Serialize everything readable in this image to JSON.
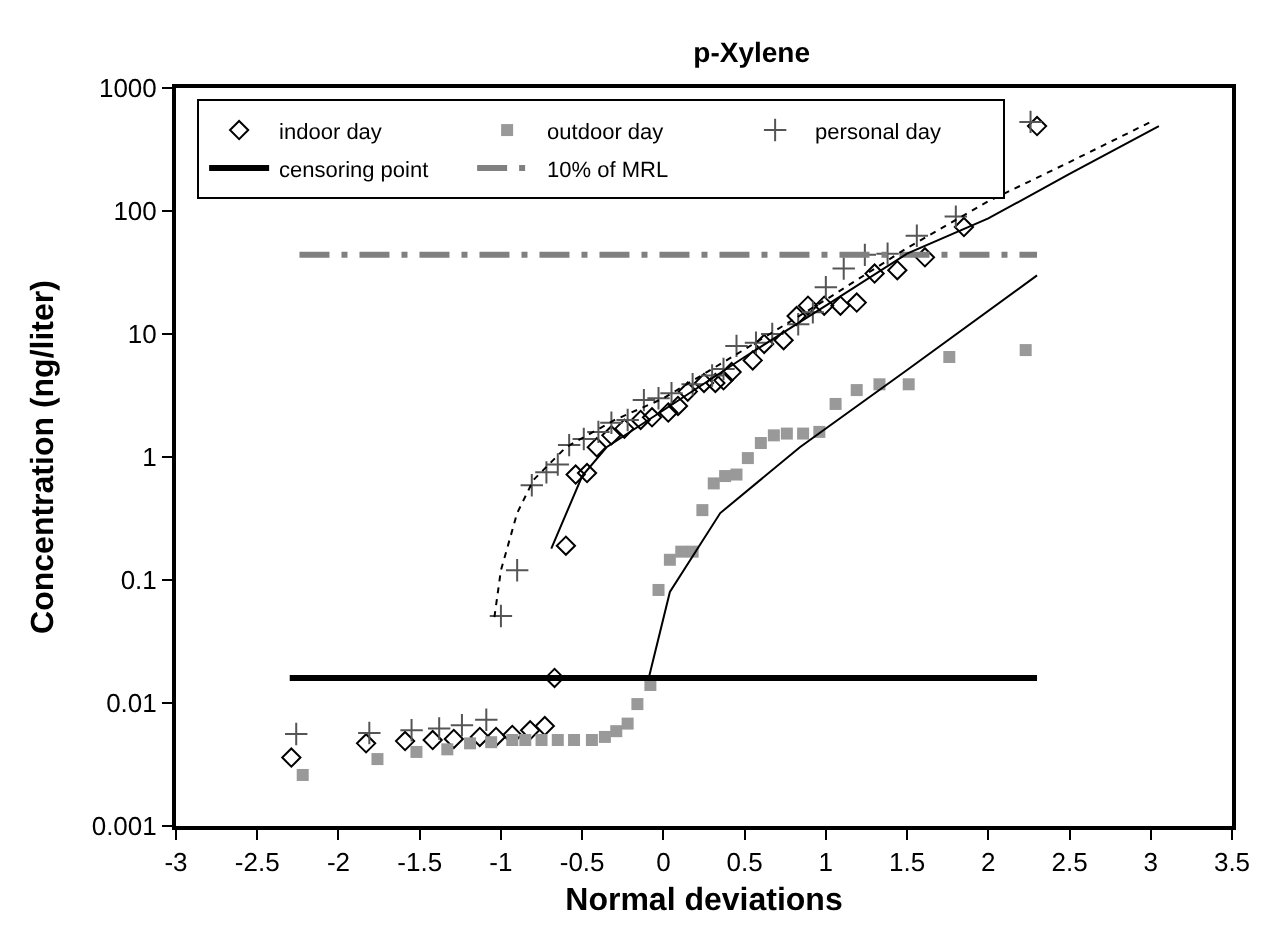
{
  "chart_data": {
    "type": "scatter",
    "title": "p-Xylene",
    "xlabel": "Normal deviations",
    "ylabel": "Concentration (ng/liter)",
    "log": "y",
    "legend": "top left",
    "xlim": [
      -3,
      3.5
    ],
    "xticks": [
      -3,
      -2.5,
      -2,
      -1.5,
      -1,
      -0.5,
      0,
      0.5,
      1,
      1.5,
      2,
      2.5,
      3,
      3.5
    ],
    "ylim": [
      0.001,
      1000
    ],
    "yticks": [
      0.001,
      0.01,
      0.1,
      1,
      10,
      100,
      1000
    ],
    "series": [
      {
        "name": "indoor day",
        "marker": "diamond",
        "color": "#000000",
        "x": [
          -2.29,
          -1.83,
          -1.59,
          -1.42,
          -1.29,
          -1.13,
          -1.03,
          -0.93,
          -0.82,
          -0.73,
          -0.67,
          -0.6,
          -0.54,
          -0.47,
          -0.41,
          -0.32,
          -0.24,
          -0.14,
          -0.07,
          0.03,
          0.09,
          0.15,
          0.25,
          0.32,
          0.37,
          0.42,
          0.55,
          0.62,
          0.74,
          0.82,
          0.89,
          0.99,
          1.09,
          1.19,
          1.3,
          1.44,
          1.61,
          1.85,
          2.3
        ],
        "values": [
          0.0036,
          0.0047,
          0.0049,
          0.005,
          0.0051,
          0.0053,
          0.0053,
          0.0055,
          0.006,
          0.0065,
          0.016,
          0.19,
          0.72,
          0.74,
          1.2,
          1.5,
          1.7,
          2.0,
          2.1,
          2.3,
          2.6,
          3.4,
          4.0,
          4.0,
          4.2,
          4.9,
          6.1,
          8.3,
          8.9,
          14,
          17,
          17,
          17,
          18,
          31,
          33,
          42,
          74,
          490
        ]
      },
      {
        "name": "outdoor day",
        "marker": "square",
        "color": "#999999",
        "x": [
          -2.22,
          -1.76,
          -1.52,
          -1.33,
          -1.19,
          -1.06,
          -0.93,
          -0.85,
          -0.75,
          -0.65,
          -0.55,
          -0.44,
          -0.36,
          -0.29,
          -0.22,
          -0.16,
          -0.08,
          -0.03,
          0.04,
          0.11,
          0.18,
          0.24,
          0.31,
          0.38,
          0.45,
          0.52,
          0.6,
          0.68,
          0.76,
          0.86,
          0.96,
          1.06,
          1.19,
          1.33,
          1.51,
          1.76,
          2.23
        ],
        "values": [
          0.0026,
          0.0035,
          0.004,
          0.0042,
          0.0047,
          0.0048,
          0.005,
          0.005,
          0.005,
          0.005,
          0.005,
          0.005,
          0.0053,
          0.0059,
          0.0068,
          0.0098,
          0.014,
          0.083,
          0.146,
          0.17,
          0.17,
          0.37,
          0.61,
          0.7,
          0.72,
          0.98,
          1.3,
          1.5,
          1.55,
          1.55,
          1.6,
          2.7,
          3.5,
          3.9,
          3.9,
          6.5,
          7.4
        ]
      },
      {
        "name": "personal day",
        "marker": "cross",
        "color": "#555555",
        "x": [
          -2.26,
          -1.81,
          -1.55,
          -1.38,
          -1.24,
          -1.09,
          -1.0,
          -0.9,
          -0.81,
          -0.72,
          -0.65,
          -0.58,
          -0.49,
          -0.4,
          -0.32,
          -0.22,
          -0.12,
          -0.03,
          0.05,
          0.18,
          0.3,
          0.37,
          0.45,
          0.57,
          0.67,
          0.83,
          0.92,
          1.0,
          1.11,
          1.24,
          1.38,
          1.56,
          1.8,
          2.26
        ],
        "values": [
          0.0056,
          0.0057,
          0.006,
          0.0062,
          0.0066,
          0.0073,
          0.051,
          0.12,
          0.59,
          0.75,
          0.87,
          1.25,
          1.4,
          1.6,
          1.9,
          2.0,
          2.9,
          3.0,
          3.3,
          3.9,
          4.6,
          5.2,
          8.0,
          8.5,
          10,
          12,
          15,
          24,
          34,
          44,
          45,
          63,
          90,
          530
        ]
      },
      {
        "name": "censoring point",
        "type": "line",
        "line_style": "solid",
        "color": "#000000",
        "x": [
          -2.3,
          2.3
        ],
        "values": [
          0.016,
          0.016
        ]
      },
      {
        "name": "10% of MRL",
        "type": "line",
        "line_style": "dashed",
        "color": "#808080",
        "x": [
          -2.24,
          2.3
        ],
        "values": [
          44,
          44
        ]
      },
      {
        "type": "line",
        "line_style": "solid",
        "color": "#000000",
        "x": [
          -0.69,
          -0.5,
          -0.35,
          0,
          0.5,
          1,
          1.5,
          2,
          2.5,
          3.05
        ],
        "values": [
          0.18,
          0.7,
          1.2,
          2.4,
          6.5,
          17,
          45,
          87,
          200,
          490
        ]
      },
      {
        "type": "line",
        "line_style": "dotted",
        "color": "#000000",
        "x": [
          -1.04,
          -1.0,
          -0.9,
          -0.8,
          -0.6,
          -0.3,
          0,
          0.5,
          1,
          1.5,
          2,
          2.5,
          3.0
        ],
        "values": [
          0.05,
          0.12,
          0.35,
          0.65,
          1.2,
          2.0,
          3.0,
          7.5,
          19,
          50,
          120,
          250,
          530
        ]
      },
      {
        "type": "line",
        "line_style": "solid",
        "color": "#000000",
        "x": [
          -0.09,
          0.04,
          0.35,
          0.84,
          1.5,
          2.3
        ],
        "values": [
          0.016,
          0.08,
          0.35,
          1.2,
          5.1,
          30
        ]
      }
    ]
  }
}
